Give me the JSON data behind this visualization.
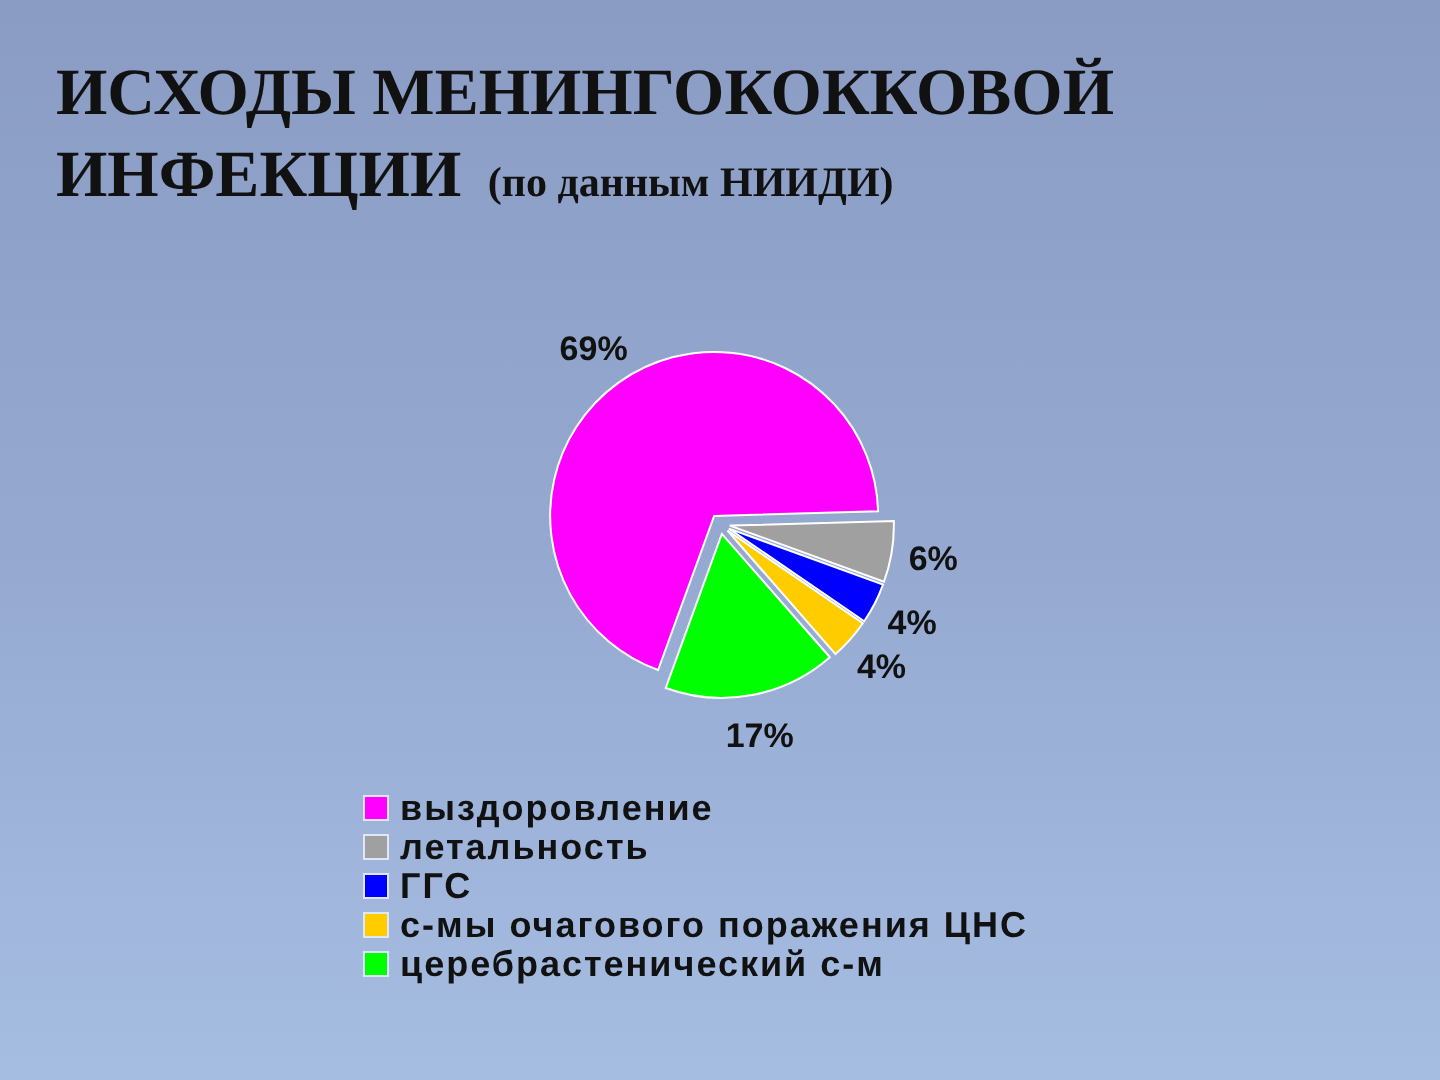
{
  "chart_data": {
    "type": "pie",
    "title": "ИСХОДЫ МЕНИНГОКОККОВОЙ ИНФЕКЦИИ (по данным НИИДИ)",
    "categories": [
      "выздоровление",
      "летальность",
      "ГГС",
      "с-мы очагового поражения ЦНС",
      "церебрастенический с-м"
    ],
    "values": [
      69,
      6,
      4,
      4,
      17
    ],
    "colors": [
      "#ff00ff",
      "#a0a0a0",
      "#0000ff",
      "#ffcc00",
      "#00ff00"
    ],
    "value_labels": [
      "69%",
      "6%",
      "4%",
      "4%",
      "17%"
    ],
    "legend": "bottom"
  }
}
